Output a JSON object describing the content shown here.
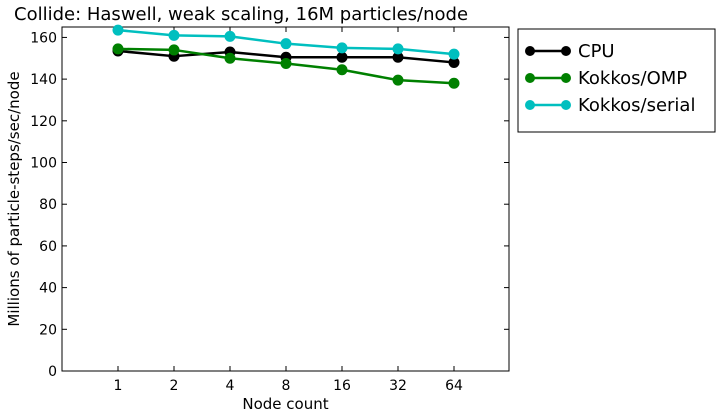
{
  "chart_data": {
    "type": "line",
    "title": "Collide: Haswell, weak scaling, 16M particles/node",
    "xlabel": "Node count",
    "ylabel": "Millions of particle-steps/sec/node",
    "categories": [
      "1",
      "2",
      "4",
      "8",
      "16",
      "32",
      "64"
    ],
    "ylim": [
      0,
      165
    ],
    "yticks": [
      0,
      20,
      40,
      60,
      80,
      100,
      120,
      140,
      160
    ],
    "grid": false,
    "legend_position": "outside right",
    "series": [
      {
        "name": "CPU",
        "color": "#000000",
        "values": [
          153.5,
          151,
          153,
          150.5,
          150.5,
          150.5,
          148
        ]
      },
      {
        "name": "Kokkos/OMP",
        "color": "#008000",
        "values": [
          154.5,
          154,
          150,
          147.5,
          144.5,
          139.5,
          138
        ]
      },
      {
        "name": "Kokkos/serial",
        "color": "#00bfbf",
        "values": [
          163.5,
          161,
          160.5,
          157,
          155,
          154.5,
          152
        ]
      }
    ]
  }
}
